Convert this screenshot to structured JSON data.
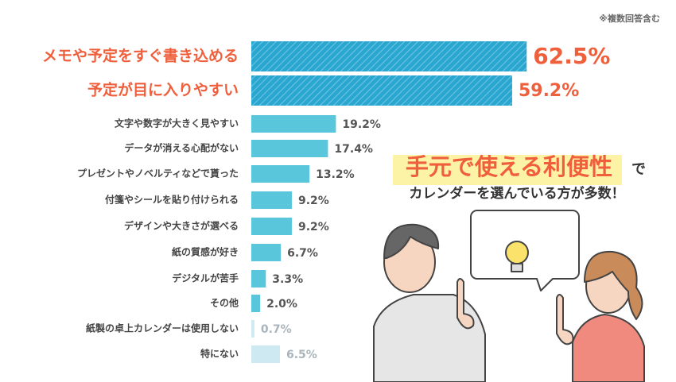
{
  "chart_data": {
    "type": "bar",
    "orientation": "horizontal",
    "note": "※複数回答含む",
    "categories": [
      "メモや予定をすぐ書き込める",
      "予定が目に入りやすい",
      "文字や数字が大きく見やすい",
      "データが消える心配がない",
      "プレゼントやノベルティなどで貰った",
      "付箋やシールを貼り付けられる",
      "デザインや大きさが選べる",
      "紙の質感が好き",
      "デジタルが苦手",
      "その他",
      "紙製の卓上カレンダーは使用しない",
      "特にない"
    ],
    "values": [
      62.5,
      59.2,
      19.2,
      17.4,
      13.2,
      9.2,
      9.2,
      6.7,
      3.3,
      2.0,
      0.7,
      6.5
    ],
    "value_labels": [
      "62.5%",
      "59.2%",
      "19.2%",
      "17.4%",
      "13.2%",
      "9.2%",
      "9.2%",
      "6.7%",
      "3.3%",
      "2.0%",
      "0.7%",
      "6.5%"
    ],
    "colors": [
      "#2aa7d0",
      "#2aa7d0",
      "#5ac6dc",
      "#5ac6dc",
      "#5ac6dc",
      "#5ac6dc",
      "#5ac6dc",
      "#5ac6dc",
      "#5ac6dc",
      "#5ac6dc",
      "#cfe9f2",
      "#cfe9f2"
    ],
    "striped": [
      true,
      true,
      false,
      false,
      false,
      false,
      false,
      false,
      false,
      false,
      false,
      false
    ],
    "label_colors": [
      "#ef5f3c",
      "#ef5f3c",
      "#444444",
      "#444444",
      "#444444",
      "#444444",
      "#444444",
      "#444444",
      "#444444",
      "#444444",
      "#444444",
      "#444444"
    ],
    "value_label_colors": [
      "#ef5f3c",
      "#ef5f3c",
      "#555555",
      "#555555",
      "#555555",
      "#555555",
      "#555555",
      "#555555",
      "#555555",
      "#555555",
      "#a9b4bb",
      "#a9b4bb"
    ],
    "annotation": {
      "highlight": "手元で使える利便性",
      "suffix": "で",
      "line2": "カレンダーを選んでいる方が多数！"
    }
  }
}
